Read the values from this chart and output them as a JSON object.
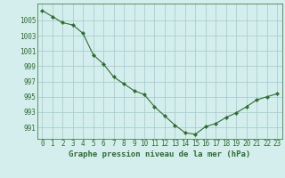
{
  "x": [
    0,
    1,
    2,
    3,
    4,
    5,
    6,
    7,
    8,
    9,
    10,
    11,
    12,
    13,
    14,
    15,
    16,
    17,
    18,
    19,
    20,
    21,
    22,
    23
  ],
  "y": [
    1006.3,
    1005.5,
    1004.7,
    1004.4,
    1003.3,
    1000.5,
    999.3,
    997.6,
    996.7,
    995.8,
    995.3,
    993.7,
    992.5,
    991.3,
    990.3,
    990.1,
    991.1,
    991.5,
    992.3,
    992.9,
    993.7,
    994.6,
    995.0,
    995.4
  ],
  "line_color": "#2d6e2d",
  "bg_color": "#d4eeee",
  "grid_color": "#aacece",
  "ylabel_ticks": [
    991,
    993,
    995,
    997,
    999,
    1001,
    1003,
    1005
  ],
  "xlabel": "Graphe pression niveau de la mer (hPa)",
  "xlabel_fontsize": 6.5,
  "tick_fontsize": 5.5,
  "ylim": [
    989.5,
    1007.2
  ],
  "xlim": [
    -0.5,
    23.5
  ],
  "figwidth": 3.2,
  "figheight": 2.0,
  "dpi": 100
}
